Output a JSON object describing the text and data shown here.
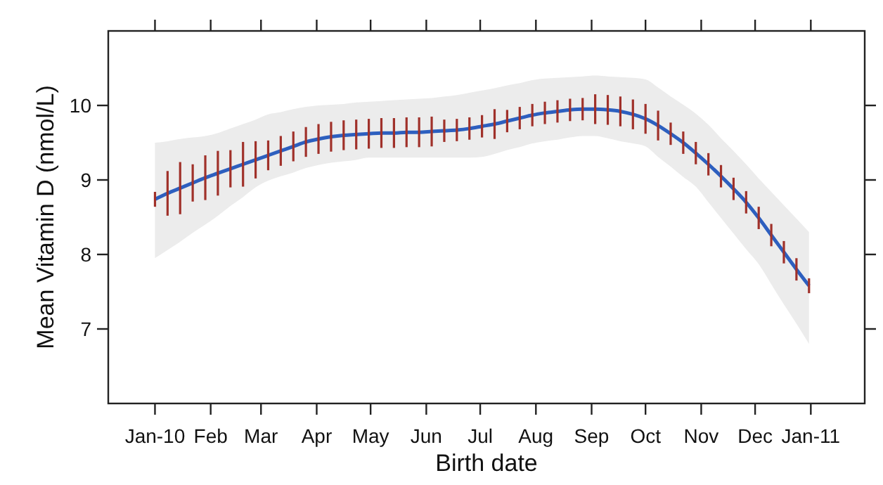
{
  "chart_data": {
    "type": "line",
    "xlabel": "Birth date",
    "ylabel": "Mean Vitamin D (nmol/L)",
    "xlim": [
      "2009-12-06",
      "2011-01-31"
    ],
    "ylim": [
      6,
      11
    ],
    "yticks": [
      7,
      8,
      9,
      10
    ],
    "xticks": [
      {
        "value": "2010-01-01",
        "label": "Jan-10"
      },
      {
        "value": "2010-02-01",
        "label": "Feb"
      },
      {
        "value": "2010-03-01",
        "label": "Mar"
      },
      {
        "value": "2010-04-01",
        "label": "Apr"
      },
      {
        "value": "2010-05-01",
        "label": "May"
      },
      {
        "value": "2010-06-01",
        "label": "Jun"
      },
      {
        "value": "2010-07-01",
        "label": "Jul"
      },
      {
        "value": "2010-08-01",
        "label": "Aug"
      },
      {
        "value": "2010-09-01",
        "label": "Sep"
      },
      {
        "value": "2010-10-01",
        "label": "Oct"
      },
      {
        "value": "2010-11-01",
        "label": "Nov"
      },
      {
        "value": "2010-12-01",
        "label": "Dec"
      },
      {
        "value": "2011-01-01",
        "label": "Jan-11"
      }
    ],
    "grid": false,
    "marker": "none",
    "line_style": "solid",
    "x": [
      "2010-01-01",
      "2010-01-08",
      "2010-01-15",
      "2010-01-22",
      "2010-01-29",
      "2010-02-05",
      "2010-02-12",
      "2010-02-19",
      "2010-02-26",
      "2010-03-05",
      "2010-03-12",
      "2010-03-19",
      "2010-03-26",
      "2010-04-02",
      "2010-04-09",
      "2010-04-16",
      "2010-04-23",
      "2010-04-30",
      "2010-05-07",
      "2010-05-14",
      "2010-05-21",
      "2010-05-28",
      "2010-06-04",
      "2010-06-11",
      "2010-06-18",
      "2010-06-25",
      "2010-07-02",
      "2010-07-09",
      "2010-07-16",
      "2010-07-23",
      "2010-07-30",
      "2010-08-06",
      "2010-08-13",
      "2010-08-20",
      "2010-08-27",
      "2010-09-03",
      "2010-09-10",
      "2010-09-17",
      "2010-09-24",
      "2010-10-01",
      "2010-10-08",
      "2010-10-15",
      "2010-10-22",
      "2010-10-29",
      "2010-11-05",
      "2010-11-12",
      "2010-11-19",
      "2010-11-26",
      "2010-12-03",
      "2010-12-10",
      "2010-12-17",
      "2010-12-24",
      "2010-12-31"
    ],
    "series": [
      {
        "color": "#2d5fbf",
        "values": [
          8.74,
          8.82,
          8.89,
          8.96,
          9.03,
          9.09,
          9.15,
          9.21,
          9.27,
          9.33,
          9.39,
          9.45,
          9.51,
          9.55,
          9.58,
          9.6,
          9.61,
          9.62,
          9.63,
          9.63,
          9.64,
          9.64,
          9.65,
          9.66,
          9.67,
          9.69,
          9.72,
          9.75,
          9.79,
          9.83,
          9.87,
          9.9,
          9.92,
          9.94,
          9.95,
          9.95,
          9.94,
          9.92,
          9.88,
          9.82,
          9.73,
          9.62,
          9.5,
          9.36,
          9.21,
          9.05,
          8.88,
          8.7,
          8.49,
          8.26,
          8.03,
          7.8,
          7.58
        ],
        "errors": [
          0.1,
          0.3,
          0.35,
          0.25,
          0.3,
          0.3,
          0.25,
          0.3,
          0.25,
          0.2,
          0.2,
          0.2,
          0.2,
          0.2,
          0.2,
          0.2,
          0.2,
          0.2,
          0.2,
          0.2,
          0.2,
          0.2,
          0.2,
          0.15,
          0.15,
          0.15,
          0.15,
          0.2,
          0.15,
          0.15,
          0.15,
          0.15,
          0.15,
          0.15,
          0.15,
          0.2,
          0.2,
          0.2,
          0.2,
          0.2,
          0.2,
          0.15,
          0.15,
          0.15,
          0.15,
          0.15,
          0.15,
          0.15,
          0.15,
          0.15,
          0.15,
          0.15,
          0.1
        ],
        "lower": [
          7.95,
          8.06,
          8.17,
          8.29,
          8.4,
          8.52,
          8.65,
          8.77,
          8.9,
          8.99,
          9.05,
          9.1,
          9.16,
          9.2,
          9.23,
          9.25,
          9.27,
          9.3,
          9.3,
          9.3,
          9.3,
          9.3,
          9.3,
          9.3,
          9.3,
          9.3,
          9.31,
          9.35,
          9.4,
          9.44,
          9.49,
          9.52,
          9.54,
          9.57,
          9.59,
          9.59,
          9.56,
          9.52,
          9.49,
          9.45,
          9.31,
          9.18,
          9.04,
          8.91,
          8.7,
          8.49,
          8.28,
          8.07,
          7.87,
          7.6,
          7.33,
          7.07,
          6.8
        ],
        "upper": [
          9.5,
          9.52,
          9.55,
          9.57,
          9.59,
          9.63,
          9.69,
          9.75,
          9.81,
          9.88,
          9.91,
          9.95,
          9.98,
          10.0,
          10.01,
          10.02,
          10.04,
          10.05,
          10.06,
          10.07,
          10.08,
          10.09,
          10.1,
          10.12,
          10.14,
          10.17,
          10.2,
          10.23,
          10.27,
          10.3,
          10.34,
          10.36,
          10.37,
          10.38,
          10.39,
          10.4,
          10.39,
          10.38,
          10.37,
          10.35,
          10.24,
          10.12,
          10.01,
          9.89,
          9.74,
          9.56,
          9.39,
          9.21,
          9.02,
          8.84,
          8.66,
          8.48,
          8.3
        ]
      }
    ]
  }
}
